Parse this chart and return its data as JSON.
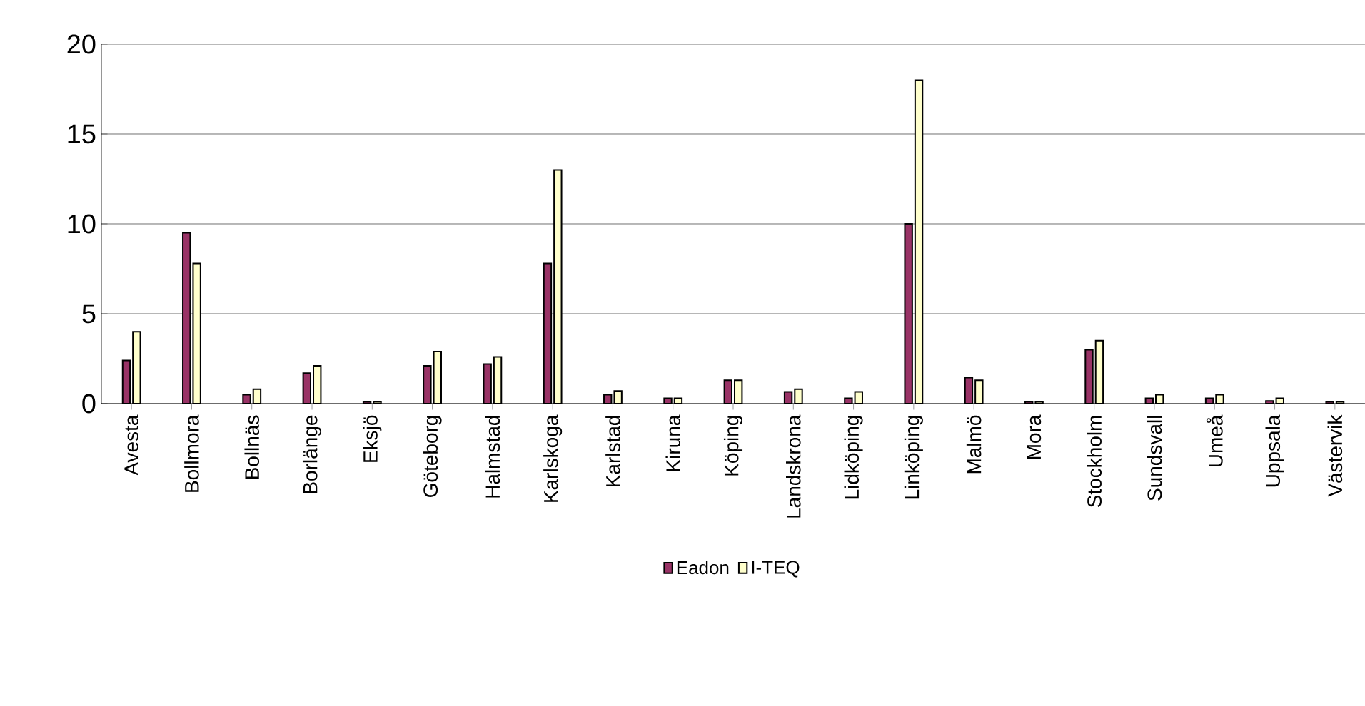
{
  "chart_data": {
    "type": "bar",
    "categories": [
      "Avesta",
      "Bollmora",
      "Bollnäs",
      "Borlänge",
      "Eksjö",
      "Göteborg",
      "Halmstad",
      "Karlskoga",
      "Karlstad",
      "Kiruna",
      "Köping",
      "Landskrona",
      "Lidköping",
      "Linköping",
      "Malmö",
      "Mora",
      "Stockholm",
      "Sundsvall",
      "Umeå",
      "Uppsala",
      "Västervik"
    ],
    "series": [
      {
        "name": "Eadon",
        "color": "#993366",
        "values": [
          2.4,
          9.5,
          0.5,
          1.7,
          0.1,
          2.1,
          2.2,
          7.8,
          0.5,
          0.3,
          1.3,
          0.65,
          0.3,
          10.0,
          1.45,
          0.1,
          3.0,
          0.3,
          0.3,
          0.15,
          0.1
        ]
      },
      {
        "name": "I-TEQ",
        "color": "#ffffcc",
        "values": [
          4.0,
          7.8,
          0.8,
          2.1,
          0.1,
          2.9,
          2.6,
          13.0,
          0.7,
          0.3,
          1.3,
          0.8,
          0.65,
          18.0,
          1.3,
          0.1,
          3.5,
          0.5,
          0.5,
          0.3,
          0.1
        ]
      }
    ],
    "ylim": [
      0,
      20
    ],
    "yticks": [
      0,
      5,
      10,
      15,
      20
    ],
    "grid": "y",
    "legend": "bottom"
  }
}
